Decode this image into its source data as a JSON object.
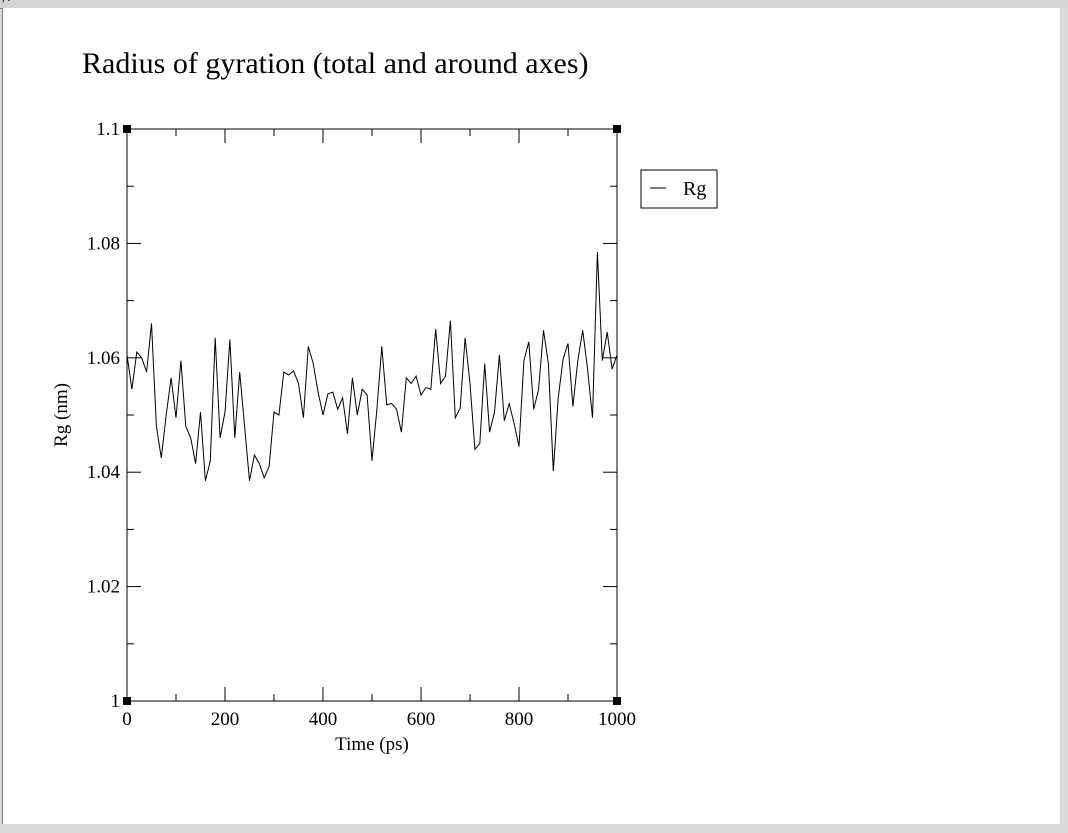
{
  "window": {
    "title_fragment": ", ."
  },
  "chart_data": {
    "type": "line",
    "title": "Radius of gyration (total and around axes)",
    "xlabel": "Time (ps)",
    "ylabel": "Rg (nm)",
    "xlim": [
      0,
      1000
    ],
    "ylim": [
      1,
      1.1
    ],
    "xticks": [
      0,
      200,
      400,
      600,
      800,
      1000
    ],
    "xtick_labels": [
      "0",
      "200",
      "400",
      "600",
      "800",
      "1000"
    ],
    "yticks": [
      1,
      1.02,
      1.04,
      1.06,
      1.08,
      1.1
    ],
    "ytick_labels": [
      "1",
      "1.02",
      "1.04",
      "1.06",
      "1.08",
      "1.1"
    ],
    "grid": false,
    "legend_position": "top-right outside",
    "series": [
      {
        "name": "Rg",
        "color": "#000000",
        "x": [
          0,
          10,
          20,
          30,
          40,
          50,
          60,
          70,
          80,
          90,
          100,
          110,
          120,
          130,
          140,
          150,
          160,
          170,
          180,
          190,
          200,
          210,
          220,
          230,
          240,
          250,
          260,
          270,
          280,
          290,
          300,
          310,
          320,
          330,
          340,
          350,
          360,
          370,
          380,
          390,
          400,
          410,
          420,
          430,
          440,
          450,
          460,
          470,
          480,
          490,
          500,
          510,
          520,
          530,
          540,
          550,
          560,
          570,
          580,
          590,
          600,
          610,
          620,
          630,
          640,
          650,
          660,
          670,
          680,
          690,
          700,
          710,
          720,
          730,
          740,
          750,
          760,
          770,
          780,
          790,
          800,
          810,
          820,
          830,
          840,
          850,
          860,
          870,
          880,
          890,
          900,
          910,
          920,
          930,
          940,
          950,
          960,
          970,
          980,
          990,
          1000
        ],
        "y": [
          1.0605,
          1.0545,
          1.061,
          1.06,
          1.0575,
          1.066,
          1.048,
          1.0425,
          1.05,
          1.0565,
          1.0495,
          1.0595,
          1.048,
          1.046,
          1.0415,
          1.0505,
          1.0385,
          1.042,
          1.0635,
          1.046,
          1.0505,
          1.0632,
          1.046,
          1.0575,
          1.048,
          1.0385,
          1.043,
          1.0415,
          1.039,
          1.041,
          1.0505,
          1.05,
          1.0575,
          1.057,
          1.0577,
          1.0555,
          1.0495,
          1.062,
          1.059,
          1.054,
          1.05,
          1.0537,
          1.054,
          1.051,
          1.053,
          1.0467,
          1.0565,
          1.05,
          1.0545,
          1.0535,
          1.042,
          1.051,
          1.062,
          1.0518,
          1.052,
          1.051,
          1.047,
          1.0565,
          1.0555,
          1.0568,
          1.0535,
          1.0548,
          1.0545,
          1.065,
          1.0555,
          1.0568,
          1.0665,
          1.0495,
          1.0512,
          1.0635,
          1.0555,
          1.044,
          1.045,
          1.059,
          1.047,
          1.0505,
          1.0605,
          1.049,
          1.052,
          1.0485,
          1.0445,
          1.0595,
          1.0628,
          1.051,
          1.0545,
          1.0648,
          1.059,
          1.0402,
          1.053,
          1.0598,
          1.0625,
          1.0515,
          1.0595,
          1.0648,
          1.058,
          1.0495,
          1.0785,
          1.0595,
          1.0645,
          1.058,
          1.0605
        ]
      }
    ]
  }
}
